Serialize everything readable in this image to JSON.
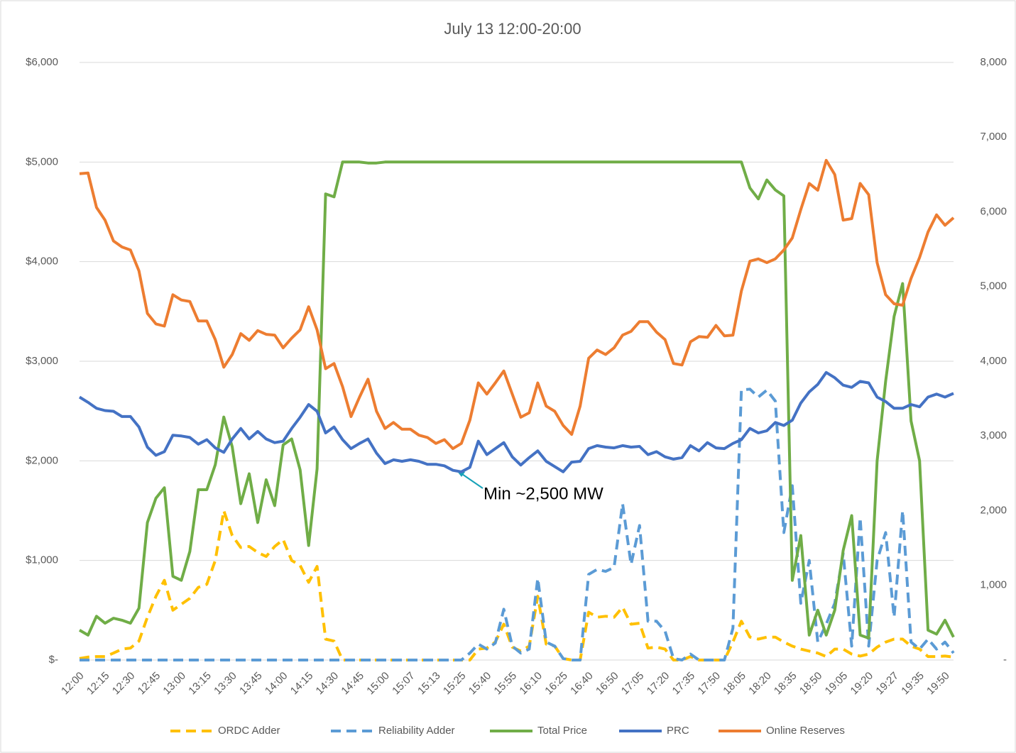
{
  "chart_data": {
    "type": "line",
    "title": "July 13 12:00-20:00",
    "annotation": "Min ~2,500 MW",
    "categories": [
      "12:00",
      null,
      null,
      "12:15",
      null,
      null,
      "12:30",
      null,
      null,
      "12:45",
      null,
      null,
      "13:00",
      null,
      null,
      "13:15",
      null,
      null,
      "13:30",
      null,
      null,
      "13:45",
      null,
      null,
      "14:00",
      null,
      null,
      "14:15",
      null,
      null,
      "14:30",
      null,
      null,
      "14:45",
      null,
      null,
      "15:00",
      null,
      null,
      "15:07",
      null,
      null,
      "15:13",
      null,
      null,
      "15:25",
      null,
      null,
      "15:40",
      null,
      null,
      "15:55",
      null,
      null,
      "16:10",
      null,
      null,
      "16:25",
      null,
      null,
      "16:40",
      null,
      null,
      "16:50",
      null,
      null,
      "17:05",
      null,
      null,
      "17:20",
      null,
      null,
      "17:35",
      null,
      null,
      "17:50",
      null,
      null,
      "18:05",
      null,
      null,
      "18:20",
      null,
      null,
      "18:35",
      null,
      null,
      "18:50",
      null,
      null,
      "19:05",
      null,
      null,
      "19:20",
      null,
      null,
      "19:27",
      null,
      null,
      "19:35",
      null,
      null,
      "19:50",
      null
    ],
    "ylim": [
      0,
      6000
    ],
    "yticks": [
      {
        "value": 0,
        "label": "$-"
      },
      {
        "value": 1000,
        "label": "$1,000"
      },
      {
        "value": 2000,
        "label": "$2,000"
      },
      {
        "value": 3000,
        "label": "$3,000"
      },
      {
        "value": 4000,
        "label": "$4,000"
      },
      {
        "value": 5000,
        "label": "$5,000"
      },
      {
        "value": 6000,
        "label": "$6,000"
      }
    ],
    "y2lim": [
      0,
      8000
    ],
    "y2ticks": [
      {
        "value": 0,
        "label": "-"
      },
      {
        "value": 1000,
        "label": "1,000"
      },
      {
        "value": 2000,
        "label": "2,000"
      },
      {
        "value": 3000,
        "label": "3,000"
      },
      {
        "value": 4000,
        "label": "4,000"
      },
      {
        "value": 5000,
        "label": "5,000"
      },
      {
        "value": 6000,
        "label": "6,000"
      },
      {
        "value": 7000,
        "label": "7,000"
      },
      {
        "value": 8000,
        "label": "8,000"
      }
    ],
    "grid": true,
    "legend": "bottom",
    "series": [
      {
        "name": "ORDC Adder",
        "color": "#ffc000",
        "dashed": true,
        "values": [
          15,
          30,
          35,
          35,
          70,
          110,
          120,
          190,
          430,
          640,
          800,
          500,
          560,
          620,
          730,
          760,
          1000,
          1500,
          1250,
          1130,
          1140,
          1080,
          1040,
          1140,
          1210,
          1000,
          950,
          780,
          940,
          210,
          190,
          0,
          0,
          0,
          0,
          0,
          0,
          0,
          0,
          0,
          0,
          0,
          0,
          0,
          0,
          0,
          0,
          110,
          120,
          180,
          360,
          130,
          90,
          140,
          640,
          160,
          140,
          15,
          0,
          0,
          480,
          430,
          440,
          430,
          530,
          360,
          370,
          120,
          130,
          110,
          0,
          0,
          35,
          0,
          0,
          0,
          0,
          180,
          390,
          230,
          210,
          230,
          230,
          180,
          140,
          110,
          90,
          70,
          35,
          110,
          110,
          60,
          40,
          60,
          130,
          180,
          210,
          210,
          140,
          110,
          35,
          35,
          40,
          30
        ]
      },
      {
        "name": "Reliability Adder",
        "color": "#5b9bd5",
        "dashed": true,
        "values": [
          0,
          0,
          0,
          0,
          0,
          0,
          0,
          0,
          0,
          0,
          0,
          0,
          0,
          0,
          0,
          0,
          0,
          0,
          0,
          0,
          0,
          0,
          0,
          0,
          0,
          0,
          0,
          0,
          0,
          0,
          0,
          0,
          0,
          0,
          0,
          0,
          0,
          0,
          0,
          0,
          0,
          0,
          0,
          0,
          0,
          0,
          70,
          160,
          110,
          170,
          510,
          140,
          70,
          110,
          820,
          180,
          140,
          15,
          0,
          0,
          860,
          910,
          890,
          930,
          1570,
          960,
          1350,
          390,
          390,
          290,
          15,
          0,
          60,
          0,
          0,
          0,
          0,
          320,
          2710,
          2720,
          2640,
          2710,
          2600,
          1280,
          1750,
          570,
          1000,
          180,
          360,
          570,
          1070,
          140,
          1430,
          140,
          1000,
          1280,
          430,
          1500,
          180,
          110,
          210,
          110,
          180,
          70
        ]
      },
      {
        "name": "Total Price",
        "color": "#70ad47",
        "dashed": false,
        "values": [
          300,
          250,
          440,
          370,
          420,
          400,
          370,
          520,
          1380,
          1625,
          1730,
          840,
          800,
          1090,
          1710,
          1710,
          1960,
          2440,
          2140,
          1570,
          1870,
          1380,
          1810,
          1550,
          2160,
          2220,
          1910,
          1150,
          1920,
          4680,
          4650,
          5000,
          5000,
          5000,
          4990,
          4990,
          5000,
          5000,
          5000,
          5000,
          5000,
          5000,
          5000,
          5000,
          5000,
          5000,
          5000,
          5000,
          5000,
          5000,
          5000,
          5000,
          5000,
          5000,
          5000,
          5000,
          5000,
          5000,
          5000,
          5000,
          5000,
          5000,
          5000,
          5000,
          5000,
          5000,
          5000,
          5000,
          5000,
          5000,
          5000,
          5000,
          5000,
          5000,
          5000,
          5000,
          5000,
          5000,
          5000,
          4740,
          4630,
          4820,
          4720,
          4660,
          800,
          1250,
          250,
          500,
          250,
          500,
          1100,
          1450,
          250,
          220,
          2000,
          2800,
          3450,
          3780,
          2400,
          2000,
          300,
          260,
          400,
          230
        ]
      },
      {
        "name": "PRC",
        "color": "#4472c4",
        "dashed": false,
        "axis": "y2",
        "values": [
          3520,
          3450,
          3370,
          3340,
          3330,
          3260,
          3260,
          3120,
          2850,
          2740,
          2790,
          3010,
          3000,
          2980,
          2890,
          2950,
          2840,
          2780,
          2960,
          3100,
          2960,
          3060,
          2960,
          2910,
          2930,
          3100,
          3250,
          3420,
          3330,
          3040,
          3120,
          2950,
          2830,
          2900,
          2960,
          2770,
          2630,
          2680,
          2660,
          2680,
          2660,
          2620,
          2620,
          2600,
          2540,
          2520,
          2580,
          2930,
          2750,
          2830,
          2910,
          2720,
          2610,
          2710,
          2800,
          2660,
          2590,
          2520,
          2650,
          2660,
          2830,
          2870,
          2850,
          2840,
          2870,
          2850,
          2860,
          2750,
          2790,
          2720,
          2690,
          2710,
          2870,
          2800,
          2910,
          2840,
          2830,
          2900,
          2950,
          3100,
          3040,
          3070,
          3180,
          3140,
          3210,
          3440,
          3590,
          3690,
          3850,
          3780,
          3680,
          3650,
          3730,
          3710,
          3520,
          3460,
          3370,
          3370,
          3420,
          3390,
          3520,
          3560,
          3520,
          3570
        ]
      },
      {
        "name": "Online Reserves",
        "color": "#ed7d31",
        "dashed": false,
        "axis": "y2",
        "values": [
          6510,
          6520,
          6060,
          5890,
          5610,
          5530,
          5490,
          5210,
          4640,
          4500,
          4470,
          4890,
          4820,
          4800,
          4540,
          4540,
          4290,
          3920,
          4090,
          4370,
          4280,
          4410,
          4360,
          4350,
          4180,
          4310,
          4420,
          4730,
          4420,
          3900,
          3970,
          3660,
          3260,
          3520,
          3760,
          3330,
          3100,
          3180,
          3090,
          3090,
          3010,
          2980,
          2900,
          2950,
          2830,
          2900,
          3210,
          3710,
          3560,
          3710,
          3870,
          3560,
          3250,
          3310,
          3710,
          3400,
          3330,
          3140,
          3020,
          3400,
          4040,
          4150,
          4090,
          4180,
          4350,
          4400,
          4530,
          4530,
          4390,
          4290,
          3970,
          3950,
          4260,
          4330,
          4320,
          4480,
          4340,
          4350,
          4940,
          5340,
          5370,
          5320,
          5370,
          5490,
          5650,
          6030,
          6380,
          6290,
          6690,
          6500,
          5890,
          5910,
          6380,
          6230,
          5320,
          4890,
          4770,
          4750,
          5110,
          5390,
          5730,
          5960,
          5820,
          5920
        ]
      }
    ]
  }
}
